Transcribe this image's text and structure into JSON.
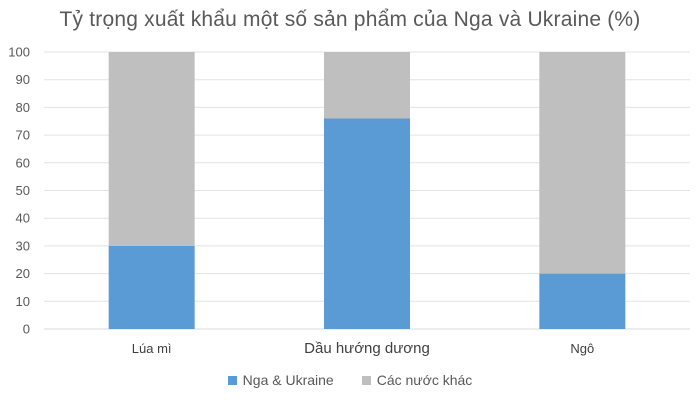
{
  "chart_data": {
    "type": "bar",
    "stacked": true,
    "title": "Tỷ trọng xuất khẩu một số sản phẩm của Nga và Ukraine (%)",
    "xlabel": "",
    "ylabel": "",
    "categories": [
      "Lúa mì",
      "Dầu hướng dương",
      "Ngô"
    ],
    "series": [
      {
        "name": "Nga & Ukraine",
        "values": [
          30,
          76,
          20
        ],
        "color": "#5b9bd5"
      },
      {
        "name": "Các nước khác",
        "values": [
          70,
          24,
          80
        ],
        "color": "#bfbfbf"
      }
    ],
    "ylim": [
      0,
      100
    ],
    "yticks": [
      "0",
      "10",
      "20",
      "30",
      "40",
      "50",
      "60",
      "70",
      "80",
      "90",
      "100"
    ],
    "grid": true,
    "legend_position": "bottom"
  }
}
